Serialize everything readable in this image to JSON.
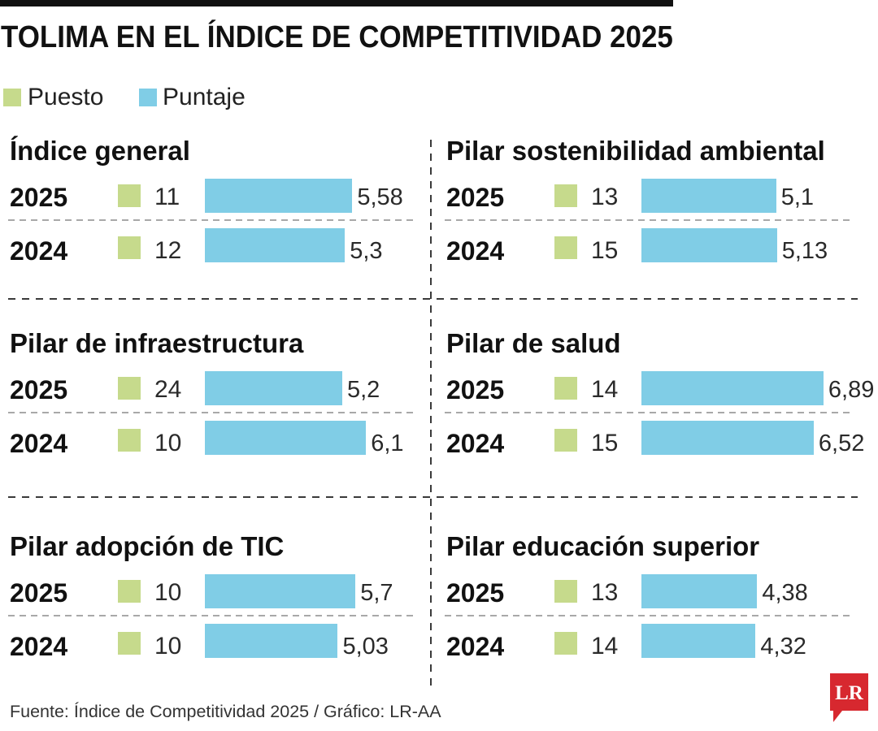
{
  "chart_data": {
    "type": "bar",
    "title": "TOLIMA EN EL ÍNDICE DE COMPETITIVIDAD 2025",
    "legend": [
      {
        "label": "Puesto",
        "color": "#c6da8c"
      },
      {
        "label": "Puntaje",
        "color": "#80cde6"
      }
    ],
    "panels": [
      {
        "title": "Índice general",
        "rows": [
          {
            "year": "2025",
            "puesto": "11",
            "puntaje": 5.58,
            "puntaje_label": "5,58"
          },
          {
            "year": "2024",
            "puesto": "12",
            "puntaje": 5.3,
            "puntaje_label": "5,3"
          }
        ]
      },
      {
        "title": "Pilar sostenibilidad ambiental",
        "rows": [
          {
            "year": "2025",
            "puesto": "13",
            "puntaje": 5.1,
            "puntaje_label": "5,1"
          },
          {
            "year": "2024",
            "puesto": "15",
            "puntaje": 5.13,
            "puntaje_label": "5,13"
          }
        ]
      },
      {
        "title": "Pilar de infraestructura",
        "rows": [
          {
            "year": "2025",
            "puesto": "24",
            "puntaje": 5.2,
            "puntaje_label": "5,2"
          },
          {
            "year": "2024",
            "puesto": "10",
            "puntaje": 6.1,
            "puntaje_label": "6,1"
          }
        ]
      },
      {
        "title": "Pilar de salud",
        "rows": [
          {
            "year": "2025",
            "puesto": "14",
            "puntaje": 6.89,
            "puntaje_label": "6,89"
          },
          {
            "year": "2024",
            "puesto": "15",
            "puntaje": 6.52,
            "puntaje_label": "6,52"
          }
        ]
      },
      {
        "title": "Pilar adopción de TIC",
        "rows": [
          {
            "year": "2025",
            "puesto": "10",
            "puntaje": 5.7,
            "puntaje_label": "5,7"
          },
          {
            "year": "2024",
            "puesto": "10",
            "puntaje": 5.03,
            "puntaje_label": "5,03"
          }
        ]
      },
      {
        "title": "Pilar educación superior",
        "rows": [
          {
            "year": "2025",
            "puesto": "13",
            "puntaje": 4.38,
            "puntaje_label": "4,38"
          },
          {
            "year": "2024",
            "puesto": "14",
            "puntaje": 4.32,
            "puntaje_label": "4,32"
          }
        ]
      }
    ]
  },
  "footer": {
    "source": "Fuente: Índice de Competitividad 2025 / Gráfico: LR-AA"
  },
  "logo": {
    "text": "LR",
    "color": "#d7282f"
  }
}
